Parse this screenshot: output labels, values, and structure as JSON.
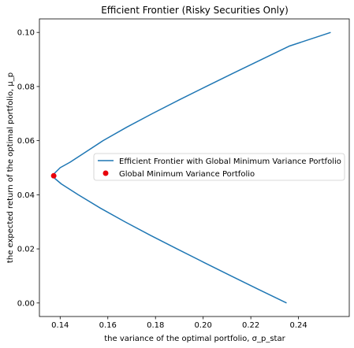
{
  "chart_data": {
    "type": "line",
    "title": "Efficient Frontier (Risky Securities Only)",
    "xlabel": "the variance of the optimal portfolio, σ_p_star",
    "ylabel": "the expected return of the optimal portfolio, μ_p",
    "xlim": [
      0.1313,
      0.2613
    ],
    "ylim": [
      -0.005,
      0.105
    ],
    "xticks": [
      0.14,
      0.16,
      0.18,
      0.2,
      0.22,
      0.24
    ],
    "xtick_labels": [
      "0.14",
      "0.16",
      "0.18",
      "0.20",
      "0.22",
      "0.24"
    ],
    "yticks": [
      0.0,
      0.02,
      0.04,
      0.06,
      0.08,
      0.1
    ],
    "ytick_labels": [
      "0.00",
      "0.02",
      "0.04",
      "0.06",
      "0.08",
      "0.10"
    ],
    "grid": false,
    "legend_position": "center-right",
    "series": [
      {
        "name": "Efficient Frontier with Global Minimum Variance Portfolio",
        "kind": "line",
        "color": "#1f77b4",
        "points": [
          [
            0.235,
            0.0
          ],
          [
            0.2233,
            0.005
          ],
          [
            0.2117,
            0.01
          ],
          [
            0.2003,
            0.015
          ],
          [
            0.189,
            0.02
          ],
          [
            0.1779,
            0.025
          ],
          [
            0.1672,
            0.03
          ],
          [
            0.157,
            0.035
          ],
          [
            0.1476,
            0.04
          ],
          [
            0.1405,
            0.044
          ],
          [
            0.1378,
            0.046
          ],
          [
            0.1373,
            0.047
          ],
          [
            0.1377,
            0.048
          ],
          [
            0.14,
            0.05
          ],
          [
            0.1441,
            0.052
          ],
          [
            0.1493,
            0.055
          ],
          [
            0.158,
            0.06
          ],
          [
            0.168,
            0.065
          ],
          [
            0.1787,
            0.07
          ],
          [
            0.1898,
            0.075
          ],
          [
            0.2012,
            0.08
          ],
          [
            0.2128,
            0.085
          ],
          [
            0.2245,
            0.09
          ],
          [
            0.2363,
            0.095
          ],
          [
            0.2535,
            0.1
          ]
        ]
      },
      {
        "name": "Global Minimum Variance Portfolio",
        "kind": "scatter",
        "color": "#e8000b",
        "points": [
          [
            0.1373,
            0.047
          ]
        ]
      }
    ]
  }
}
